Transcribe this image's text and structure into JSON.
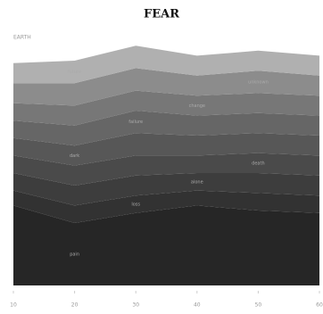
{
  "chart_data": {
    "type": "stacked_area",
    "title": "FEAR",
    "y_label": "EARTH",
    "x": [
      10,
      20,
      30,
      40,
      50,
      60
    ],
    "xlim": [
      10,
      60
    ],
    "xticks": [
      10,
      20,
      30,
      40,
      50,
      60
    ],
    "ylim": [
      0,
      100
    ],
    "series": [
      {
        "name": "pain",
        "color": "#262626",
        "values": [
          32,
          25,
          29,
          32,
          30,
          29
        ]
      },
      {
        "name": "loss",
        "color": "#323232",
        "values": [
          6,
          7,
          7,
          6,
          7,
          7
        ]
      },
      {
        "name": "alone",
        "color": "#3d3d3d",
        "values": [
          7,
          8,
          8,
          7,
          8,
          8
        ]
      },
      {
        "name": "death",
        "color": "#4a4a4a",
        "values": [
          7,
          8,
          8,
          7,
          8,
          8
        ]
      },
      {
        "name": "dark",
        "color": "#575757",
        "values": [
          7,
          8,
          9,
          8,
          8,
          8
        ]
      },
      {
        "name": "failure",
        "color": "#666666",
        "values": [
          7,
          8,
          9,
          8,
          8,
          8
        ]
      },
      {
        "name": "change",
        "color": "#777777",
        "values": [
          7,
          8,
          8,
          8,
          8,
          8
        ]
      },
      {
        "name": "unknown",
        "color": "#8c8c8c",
        "values": [
          8,
          9,
          9,
          8,
          9,
          8
        ]
      },
      {
        "name": "future",
        "color": "#b0b0b0",
        "values": [
          8,
          9,
          9,
          8,
          8,
          8
        ]
      }
    ]
  }
}
